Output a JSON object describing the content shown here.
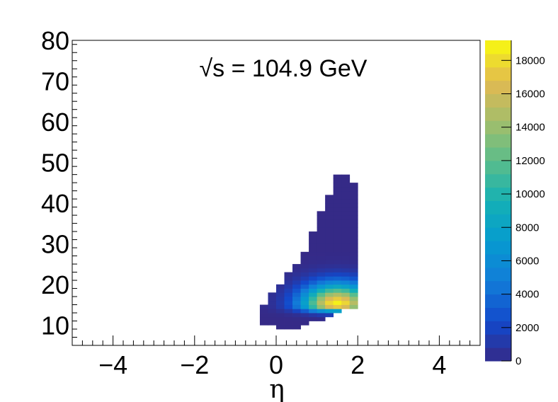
{
  "chart_data": {
    "type": "heatmap",
    "title": "",
    "annotation": "√s = 104.9 GeV",
    "xlabel": "η",
    "ylabel": "",
    "xlim": [
      -5,
      5
    ],
    "ylim": [
      5,
      80
    ],
    "x_ticks": [
      -4,
      -2,
      0,
      2,
      4
    ],
    "x_tick_labels": [
      "−4",
      "−2",
      "0",
      "2",
      "4"
    ],
    "y_ticks": [
      10,
      20,
      30,
      40,
      50,
      60,
      70,
      80
    ],
    "y_tick_labels": [
      "10",
      "20",
      "30",
      "40",
      "50",
      "60",
      "70",
      "80"
    ],
    "colorbar": {
      "min": 0,
      "max": 19200,
      "ticks": [
        0,
        2000,
        4000,
        6000,
        8000,
        10000,
        12000,
        14000,
        16000,
        18000
      ],
      "tick_labels": [
        "0",
        "2000",
        "4000",
        "6000",
        "8000",
        "10000",
        "12000",
        "14000",
        "16000",
        "18000"
      ],
      "palette": "kBird"
    },
    "bin_size": {
      "eta": 0.2,
      "pt": 1.0
    },
    "coverage": [
      {
        "eta": -0.3,
        "pt_min": 10,
        "pt_max": 15
      },
      {
        "eta": -0.1,
        "pt_min": 10,
        "pt_max": 18
      },
      {
        "eta": 0.1,
        "pt_min": 9,
        "pt_max": 20
      },
      {
        "eta": 0.3,
        "pt_min": 9,
        "pt_max": 23
      },
      {
        "eta": 0.5,
        "pt_min": 9,
        "pt_max": 25
      },
      {
        "eta": 0.7,
        "pt_min": 10,
        "pt_max": 28
      },
      {
        "eta": 0.9,
        "pt_min": 11,
        "pt_max": 33
      },
      {
        "eta": 1.1,
        "pt_min": 11,
        "pt_max": 38
      },
      {
        "eta": 1.3,
        "pt_min": 12,
        "pt_max": 42
      },
      {
        "eta": 1.5,
        "pt_min": 13,
        "pt_max": 47
      },
      {
        "eta": 1.7,
        "pt_min": 14,
        "pt_max": 47
      },
      {
        "eta": 1.9,
        "pt_min": 14,
        "pt_max": 45
      }
    ],
    "peak": {
      "eta": 1.5,
      "pt": 15,
      "value": 19000
    }
  }
}
